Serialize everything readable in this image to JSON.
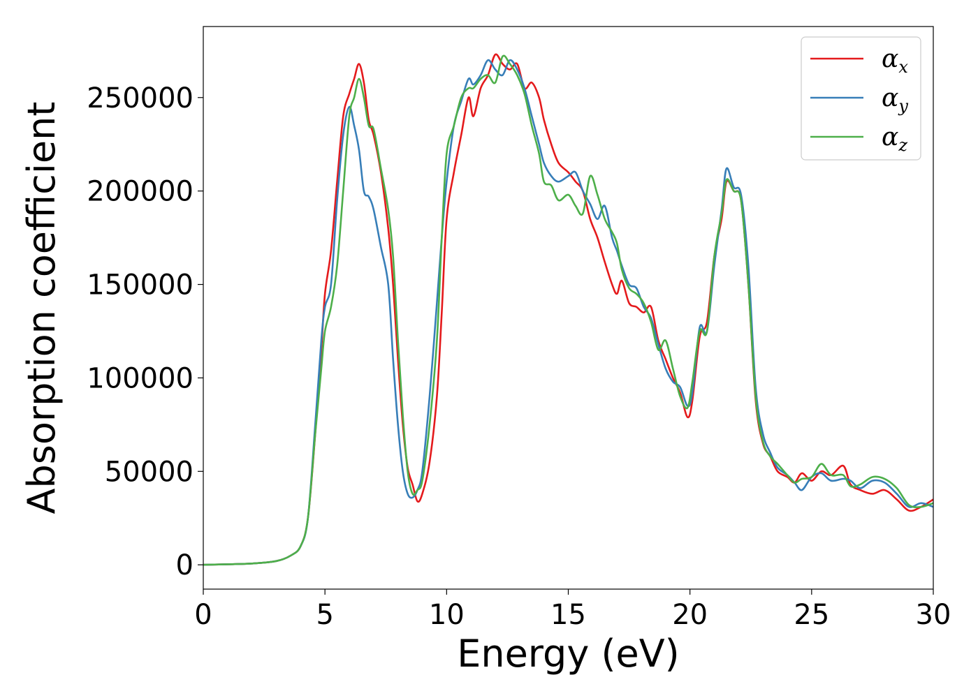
{
  "chart_data": {
    "type": "line",
    "title": "",
    "xlabel": "Energy (eV)",
    "ylabel": "Absorption coefficient",
    "xlim": [
      0,
      30
    ],
    "ylim": [
      -13000,
      288000
    ],
    "xticks": [
      0,
      5,
      10,
      15,
      20,
      25,
      30
    ],
    "yticks": [
      0,
      50000,
      100000,
      150000,
      200000,
      250000
    ],
    "grid": false,
    "legend_position": "top-right",
    "series": [
      {
        "name": "α_x",
        "label_main": "α",
        "label_sub": "x",
        "color": "#e41a1c",
        "points": [
          [
            0,
            0
          ],
          [
            1,
            300
          ],
          [
            2,
            700
          ],
          [
            3,
            2000
          ],
          [
            3.6,
            5000
          ],
          [
            4,
            10000
          ],
          [
            4.3,
            25000
          ],
          [
            4.6,
            70000
          ],
          [
            4.85,
            115000
          ],
          [
            5,
            145000
          ],
          [
            5.25,
            168000
          ],
          [
            5.5,
            205000
          ],
          [
            5.75,
            240000
          ],
          [
            6,
            252000
          ],
          [
            6.2,
            260000
          ],
          [
            6.4,
            268000
          ],
          [
            6.6,
            258000
          ],
          [
            6.8,
            238000
          ],
          [
            7,
            230000
          ],
          [
            7.3,
            210000
          ],
          [
            7.6,
            180000
          ],
          [
            7.8,
            150000
          ],
          [
            8,
            110000
          ],
          [
            8.2,
            75000
          ],
          [
            8.4,
            52000
          ],
          [
            8.6,
            43000
          ],
          [
            8.8,
            34000
          ],
          [
            9,
            38000
          ],
          [
            9.3,
            55000
          ],
          [
            9.6,
            90000
          ],
          [
            9.8,
            135000
          ],
          [
            10,
            185000
          ],
          [
            10.3,
            210000
          ],
          [
            10.6,
            230000
          ],
          [
            10.9,
            250000
          ],
          [
            11.1,
            240000
          ],
          [
            11.4,
            255000
          ],
          [
            11.7,
            262000
          ],
          [
            12,
            273000
          ],
          [
            12.3,
            268000
          ],
          [
            12.6,
            265000
          ],
          [
            12.9,
            268000
          ],
          [
            13.2,
            255000
          ],
          [
            13.5,
            258000
          ],
          [
            13.8,
            250000
          ],
          [
            14,
            238000
          ],
          [
            14.3,
            225000
          ],
          [
            14.6,
            215000
          ],
          [
            15,
            210000
          ],
          [
            15.3,
            205000
          ],
          [
            15.6,
            200000
          ],
          [
            15.9,
            185000
          ],
          [
            16.2,
            175000
          ],
          [
            16.5,
            162000
          ],
          [
            16.8,
            150000
          ],
          [
            17,
            145000
          ],
          [
            17.2,
            152000
          ],
          [
            17.5,
            140000
          ],
          [
            17.8,
            138000
          ],
          [
            18.1,
            135000
          ],
          [
            18.4,
            138000
          ],
          [
            18.7,
            120000
          ],
          [
            19,
            110000
          ],
          [
            19.3,
            100000
          ],
          [
            19.6,
            92000
          ],
          [
            19.9,
            79000
          ],
          [
            20.1,
            88000
          ],
          [
            20.4,
            122000
          ],
          [
            20.7,
            130000
          ],
          [
            21,
            165000
          ],
          [
            21.3,
            185000
          ],
          [
            21.5,
            205000
          ],
          [
            21.8,
            200000
          ],
          [
            22.1,
            195000
          ],
          [
            22.4,
            150000
          ],
          [
            22.7,
            88000
          ],
          [
            23,
            65000
          ],
          [
            23.3,
            58000
          ],
          [
            23.6,
            50000
          ],
          [
            24,
            47000
          ],
          [
            24.3,
            44000
          ],
          [
            24.6,
            49000
          ],
          [
            25,
            45000
          ],
          [
            25.4,
            50000
          ],
          [
            25.8,
            48000
          ],
          [
            26.3,
            53000
          ],
          [
            26.6,
            43000
          ],
          [
            27,
            40000
          ],
          [
            27.5,
            38000
          ],
          [
            28,
            40000
          ],
          [
            28.5,
            35000
          ],
          [
            29,
            29000
          ],
          [
            29.5,
            31000
          ],
          [
            30,
            35000
          ]
        ]
      },
      {
        "name": "α_y",
        "label_main": "α",
        "label_sub": "y",
        "color": "#377eb8",
        "points": [
          [
            0,
            0
          ],
          [
            1,
            300
          ],
          [
            2,
            700
          ],
          [
            3,
            2000
          ],
          [
            3.6,
            5000
          ],
          [
            4,
            10000
          ],
          [
            4.3,
            25000
          ],
          [
            4.6,
            75000
          ],
          [
            4.85,
            120000
          ],
          [
            5,
            138000
          ],
          [
            5.25,
            150000
          ],
          [
            5.5,
            195000
          ],
          [
            5.75,
            230000
          ],
          [
            6,
            245000
          ],
          [
            6.2,
            235000
          ],
          [
            6.4,
            222000
          ],
          [
            6.6,
            200000
          ],
          [
            6.8,
            197000
          ],
          [
            7,
            190000
          ],
          [
            7.3,
            170000
          ],
          [
            7.6,
            150000
          ],
          [
            7.8,
            110000
          ],
          [
            8,
            75000
          ],
          [
            8.2,
            50000
          ],
          [
            8.4,
            38000
          ],
          [
            8.6,
            36000
          ],
          [
            8.8,
            40000
          ],
          [
            9,
            50000
          ],
          [
            9.3,
            90000
          ],
          [
            9.6,
            140000
          ],
          [
            9.8,
            175000
          ],
          [
            10,
            205000
          ],
          [
            10.3,
            235000
          ],
          [
            10.6,
            248000
          ],
          [
            10.9,
            260000
          ],
          [
            11.1,
            257000
          ],
          [
            11.4,
            262000
          ],
          [
            11.7,
            270000
          ],
          [
            12,
            265000
          ],
          [
            12.3,
            262000
          ],
          [
            12.6,
            270000
          ],
          [
            12.9,
            265000
          ],
          [
            13.2,
            255000
          ],
          [
            13.5,
            240000
          ],
          [
            13.8,
            225000
          ],
          [
            14,
            215000
          ],
          [
            14.3,
            208000
          ],
          [
            14.6,
            205000
          ],
          [
            15,
            208000
          ],
          [
            15.3,
            210000
          ],
          [
            15.6,
            200000
          ],
          [
            15.9,
            193000
          ],
          [
            16.2,
            185000
          ],
          [
            16.5,
            192000
          ],
          [
            16.8,
            175000
          ],
          [
            17,
            168000
          ],
          [
            17.2,
            160000
          ],
          [
            17.5,
            150000
          ],
          [
            17.8,
            148000
          ],
          [
            18.1,
            138000
          ],
          [
            18.4,
            132000
          ],
          [
            18.7,
            118000
          ],
          [
            19,
            105000
          ],
          [
            19.3,
            98000
          ],
          [
            19.6,
            95000
          ],
          [
            19.9,
            85000
          ],
          [
            20.1,
            92000
          ],
          [
            20.4,
            127000
          ],
          [
            20.7,
            125000
          ],
          [
            21,
            160000
          ],
          [
            21.3,
            190000
          ],
          [
            21.5,
            212000
          ],
          [
            21.8,
            202000
          ],
          [
            22.1,
            198000
          ],
          [
            22.4,
            160000
          ],
          [
            22.7,
            95000
          ],
          [
            23,
            70000
          ],
          [
            23.3,
            60000
          ],
          [
            23.6,
            52000
          ],
          [
            24,
            48000
          ],
          [
            24.3,
            44000
          ],
          [
            24.6,
            40000
          ],
          [
            25,
            47000
          ],
          [
            25.4,
            49000
          ],
          [
            25.8,
            45000
          ],
          [
            26.3,
            46000
          ],
          [
            26.6,
            45000
          ],
          [
            27,
            41000
          ],
          [
            27.5,
            45000
          ],
          [
            28,
            44000
          ],
          [
            28.5,
            38000
          ],
          [
            29,
            31000
          ],
          [
            29.5,
            33000
          ],
          [
            30,
            31000
          ]
        ]
      },
      {
        "name": "α_z",
        "label_main": "α",
        "label_sub": "z",
        "color": "#4daf4a",
        "points": [
          [
            0,
            0
          ],
          [
            1,
            300
          ],
          [
            2,
            700
          ],
          [
            3,
            2000
          ],
          [
            3.6,
            5000
          ],
          [
            4,
            10000
          ],
          [
            4.3,
            25000
          ],
          [
            4.6,
            70000
          ],
          [
            4.85,
            105000
          ],
          [
            5,
            125000
          ],
          [
            5.25,
            138000
          ],
          [
            5.5,
            160000
          ],
          [
            5.75,
            200000
          ],
          [
            6,
            240000
          ],
          [
            6.2,
            250000
          ],
          [
            6.4,
            260000
          ],
          [
            6.6,
            250000
          ],
          [
            6.8,
            235000
          ],
          [
            7,
            233000
          ],
          [
            7.3,
            212000
          ],
          [
            7.6,
            190000
          ],
          [
            7.8,
            165000
          ],
          [
            8,
            120000
          ],
          [
            8.2,
            80000
          ],
          [
            8.4,
            50000
          ],
          [
            8.6,
            38000
          ],
          [
            8.8,
            40000
          ],
          [
            9,
            45000
          ],
          [
            9.3,
            75000
          ],
          [
            9.6,
            120000
          ],
          [
            9.8,
            175000
          ],
          [
            10,
            220000
          ],
          [
            10.3,
            235000
          ],
          [
            10.6,
            250000
          ],
          [
            10.9,
            255000
          ],
          [
            11.1,
            255000
          ],
          [
            11.4,
            260000
          ],
          [
            11.7,
            262000
          ],
          [
            12,
            258000
          ],
          [
            12.3,
            272000
          ],
          [
            12.6,
            268000
          ],
          [
            12.9,
            262000
          ],
          [
            13.2,
            252000
          ],
          [
            13.5,
            235000
          ],
          [
            13.8,
            220000
          ],
          [
            14,
            205000
          ],
          [
            14.3,
            203000
          ],
          [
            14.6,
            195000
          ],
          [
            15,
            198000
          ],
          [
            15.3,
            192000
          ],
          [
            15.6,
            188000
          ],
          [
            15.9,
            208000
          ],
          [
            16.2,
            198000
          ],
          [
            16.5,
            185000
          ],
          [
            16.8,
            178000
          ],
          [
            17,
            172000
          ],
          [
            17.2,
            158000
          ],
          [
            17.5,
            148000
          ],
          [
            17.8,
            145000
          ],
          [
            18.1,
            140000
          ],
          [
            18.4,
            130000
          ],
          [
            18.7,
            115000
          ],
          [
            19,
            120000
          ],
          [
            19.3,
            105000
          ],
          [
            19.6,
            90000
          ],
          [
            19.9,
            84000
          ],
          [
            20.1,
            98000
          ],
          [
            20.4,
            125000
          ],
          [
            20.7,
            125000
          ],
          [
            21,
            165000
          ],
          [
            21.3,
            188000
          ],
          [
            21.5,
            206000
          ],
          [
            21.8,
            200000
          ],
          [
            22.1,
            195000
          ],
          [
            22.4,
            150000
          ],
          [
            22.7,
            90000
          ],
          [
            23,
            66000
          ],
          [
            23.3,
            58000
          ],
          [
            23.6,
            54000
          ],
          [
            24,
            48000
          ],
          [
            24.3,
            44000
          ],
          [
            24.6,
            46000
          ],
          [
            25,
            47000
          ],
          [
            25.4,
            54000
          ],
          [
            25.8,
            48000
          ],
          [
            26.3,
            48000
          ],
          [
            26.6,
            42000
          ],
          [
            27,
            43000
          ],
          [
            27.5,
            47000
          ],
          [
            28,
            46000
          ],
          [
            28.5,
            41000
          ],
          [
            29,
            32000
          ],
          [
            29.5,
            31000
          ],
          [
            30,
            33000
          ]
        ]
      }
    ]
  }
}
